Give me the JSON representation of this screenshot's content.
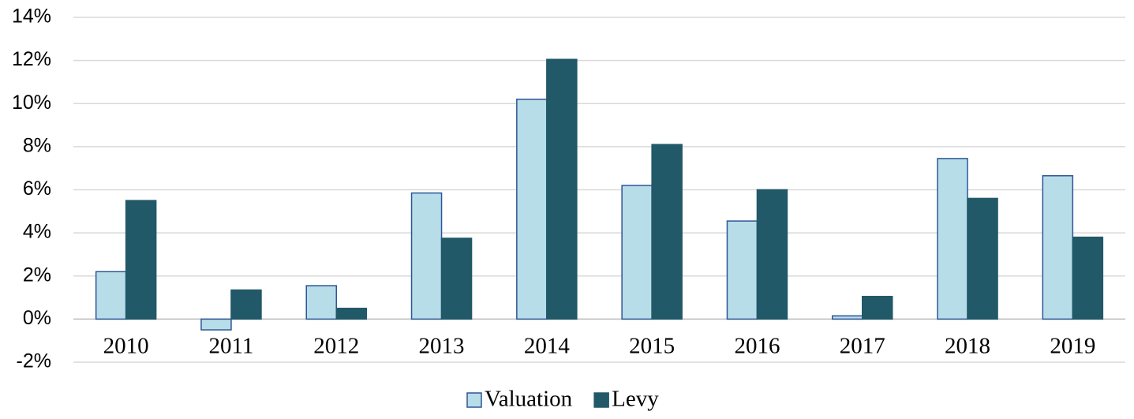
{
  "chart_data": {
    "type": "bar",
    "categories": [
      "2010",
      "2011",
      "2012",
      "2013",
      "2014",
      "2015",
      "2016",
      "2017",
      "2018",
      "2019"
    ],
    "series": [
      {
        "name": "Valuation",
        "color": "#b7dde8",
        "values": [
          2.2,
          -0.5,
          1.55,
          5.85,
          10.2,
          6.2,
          4.55,
          0.15,
          7.45,
          6.65
        ]
      },
      {
        "name": "Levy",
        "color": "#215968",
        "values": [
          5.5,
          1.35,
          0.5,
          3.75,
          12.05,
          8.1,
          6.0,
          1.05,
          5.6,
          3.8
        ]
      }
    ],
    "ylim": [
      -2,
      14
    ],
    "yticks": [
      {
        "value": -2,
        "label": "-2%"
      },
      {
        "value": 0,
        "label": "0%"
      },
      {
        "value": 2,
        "label": "2%"
      },
      {
        "value": 4,
        "label": "4%"
      },
      {
        "value": 6,
        "label": "6%"
      },
      {
        "value": 8,
        "label": "8%"
      },
      {
        "value": 10,
        "label": "10%"
      },
      {
        "value": 12,
        "label": "12%"
      },
      {
        "value": 14,
        "label": "14%"
      }
    ],
    "grid": true,
    "legend": "bottom"
  }
}
